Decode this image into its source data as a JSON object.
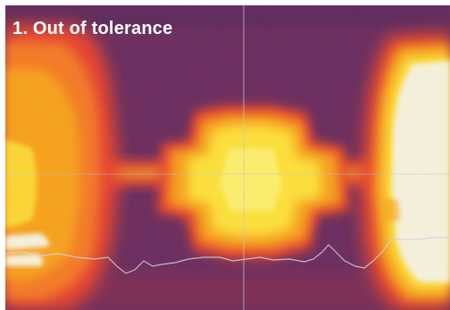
{
  "caption": {
    "label": "1. Out of tolerance"
  },
  "image": {
    "kind": "thermal-image",
    "colors": {
      "background": "#6b2d5e",
      "warm": "#e8452d",
      "hot": "#f7a21e",
      "hotter": "#fde03a",
      "hottest": "#f6f1dc"
    }
  }
}
